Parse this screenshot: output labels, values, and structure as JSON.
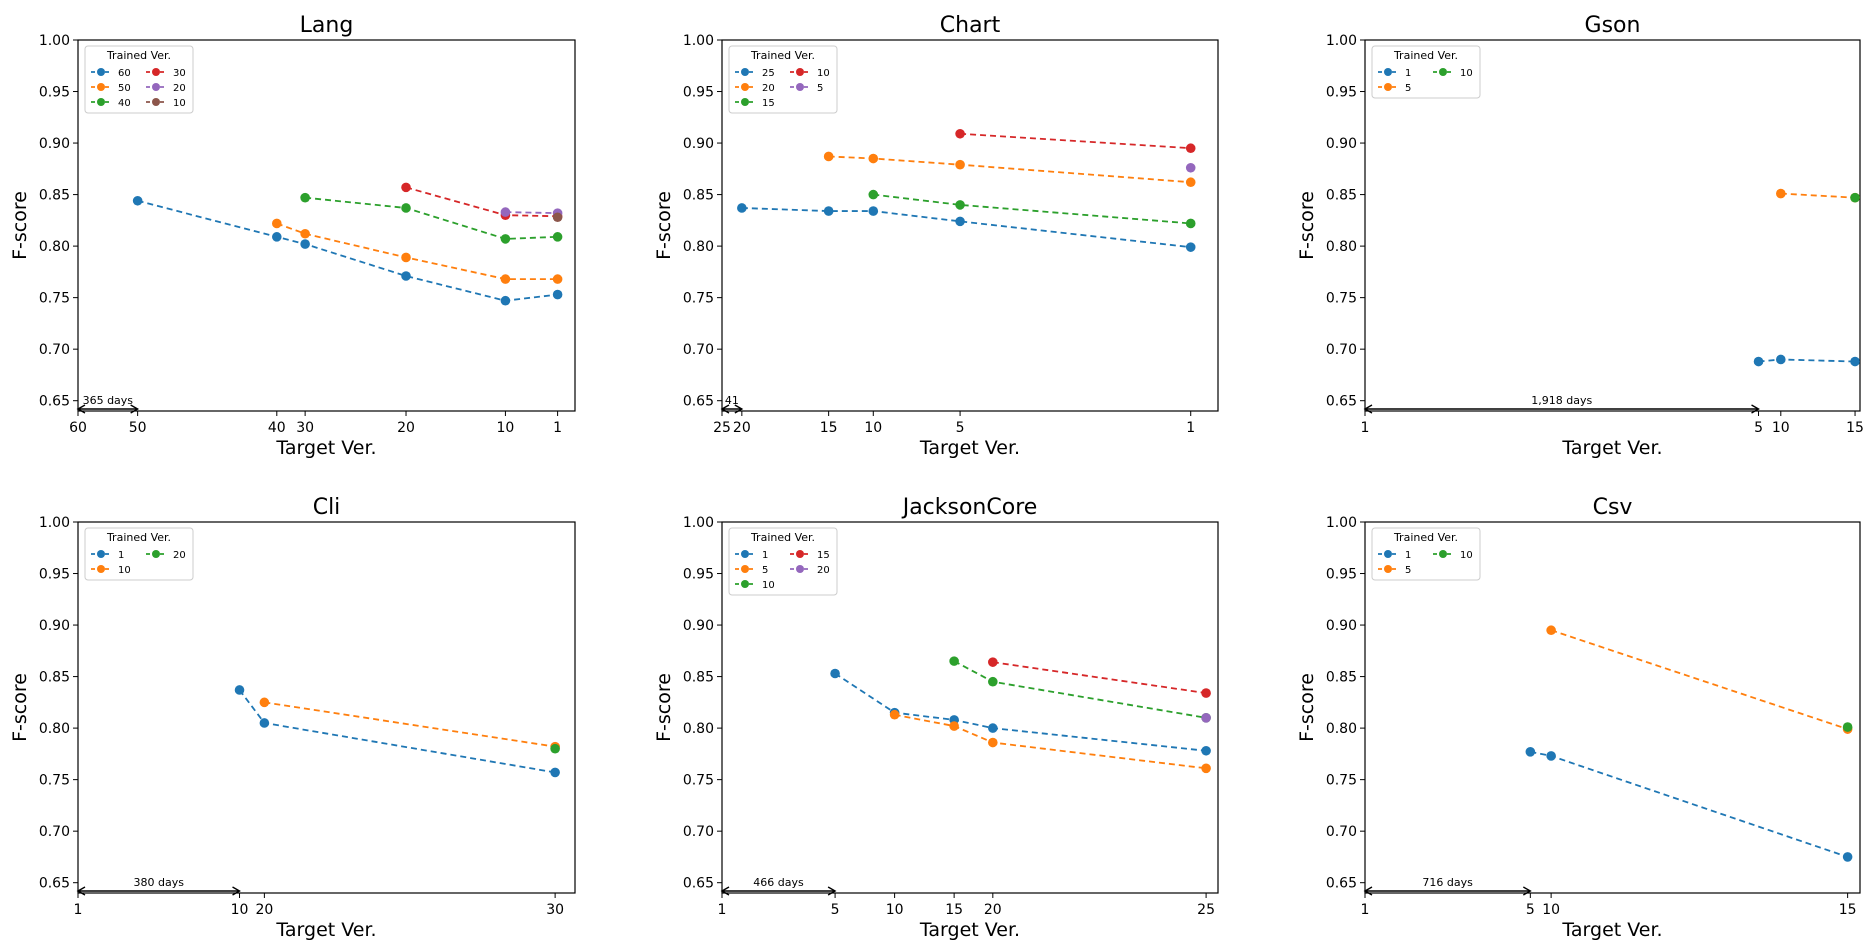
{
  "palette": {
    "series_colors": [
      "#1f77b4",
      "#ff7f0e",
      "#2ca02c",
      "#d62728",
      "#9467bd",
      "#8c564b"
    ],
    "background": "#ffffff",
    "axis_color": "#000000"
  },
  "chart_data": [
    {
      "type": "line",
      "title": "Lang",
      "xlabel": "Target Ver.",
      "ylabel": "F-score",
      "ylim": [
        0.64,
        1.0
      ],
      "yticks": [
        0.65,
        0.7,
        0.75,
        0.8,
        0.85,
        0.9,
        0.95,
        1.0
      ],
      "ytick_labels": [
        "0.65",
        "0.70",
        "0.75",
        "0.80",
        "0.85",
        "0.90",
        "0.95",
        "1.00"
      ],
      "x_ticks": [
        {
          "label": "60",
          "pos": 0.0
        },
        {
          "label": "50",
          "pos": 0.12
        },
        {
          "label": "40",
          "pos": 0.4
        },
        {
          "label": "30",
          "pos": 0.457
        },
        {
          "label": "20",
          "pos": 0.66
        },
        {
          "label": "10",
          "pos": 0.86
        },
        {
          "label": "1",
          "pos": 0.965
        }
      ],
      "range_annotation": {
        "label": "365 days",
        "from": 0.0,
        "to": 0.12
      },
      "legend": {
        "title": "Trained Ver.",
        "position": "upper-left",
        "ncol": 2
      },
      "series": [
        {
          "name": "60",
          "color": "#1f77b4",
          "x": [
            "50",
            "40",
            "30",
            "20",
            "10",
            "1"
          ],
          "values": [
            0.844,
            0.809,
            0.802,
            0.771,
            0.747,
            0.753
          ]
        },
        {
          "name": "50",
          "color": "#ff7f0e",
          "x": [
            "40",
            "30",
            "20",
            "10",
            "1"
          ],
          "values": [
            0.822,
            0.812,
            0.789,
            0.768,
            0.768
          ]
        },
        {
          "name": "40",
          "color": "#2ca02c",
          "x": [
            "30",
            "20",
            "10",
            "1"
          ],
          "values": [
            0.847,
            0.837,
            0.807,
            0.809
          ]
        },
        {
          "name": "30",
          "color": "#d62728",
          "x": [
            "20",
            "10",
            "1"
          ],
          "values": [
            0.857,
            0.83,
            0.829
          ]
        },
        {
          "name": "20",
          "color": "#9467bd",
          "x": [
            "10",
            "1"
          ],
          "values": [
            0.833,
            0.832
          ]
        },
        {
          "name": "10",
          "color": "#8c564b",
          "x": [
            "1"
          ],
          "values": [
            0.828
          ]
        }
      ]
    },
    {
      "type": "line",
      "title": "Chart",
      "xlabel": "Target Ver.",
      "ylabel": "F-score",
      "ylim": [
        0.64,
        1.0
      ],
      "yticks": [
        0.65,
        0.7,
        0.75,
        0.8,
        0.85,
        0.9,
        0.95,
        1.0
      ],
      "ytick_labels": [
        "0.65",
        "0.70",
        "0.75",
        "0.80",
        "0.85",
        "0.90",
        "0.95",
        "1.00"
      ],
      "x_ticks": [
        {
          "label": "25",
          "pos": 0.0
        },
        {
          "label": "20",
          "pos": 0.04
        },
        {
          "label": "15",
          "pos": 0.215
        },
        {
          "label": "10",
          "pos": 0.305
        },
        {
          "label": "5",
          "pos": 0.48
        },
        {
          "label": "1",
          "pos": 0.945
        }
      ],
      "range_annotation": {
        "label": "41",
        "from": 0.0,
        "to": 0.04
      },
      "legend": {
        "title": "Trained Ver.",
        "position": "upper-left",
        "ncol": 2
      },
      "series": [
        {
          "name": "25",
          "color": "#1f77b4",
          "x": [
            "20",
            "15",
            "10",
            "5",
            "1"
          ],
          "values": [
            0.837,
            0.834,
            0.834,
            0.824,
            0.799
          ]
        },
        {
          "name": "20",
          "color": "#ff7f0e",
          "x": [
            "15",
            "10",
            "5",
            "1"
          ],
          "values": [
            0.887,
            0.885,
            0.879,
            0.862
          ]
        },
        {
          "name": "15",
          "color": "#2ca02c",
          "x": [
            "10",
            "5",
            "1"
          ],
          "values": [
            0.85,
            0.84,
            0.822
          ]
        },
        {
          "name": "10",
          "color": "#d62728",
          "x": [
            "5",
            "1"
          ],
          "values": [
            0.909,
            0.895
          ]
        },
        {
          "name": "5",
          "color": "#9467bd",
          "x": [
            "1"
          ],
          "values": [
            0.876
          ]
        }
      ]
    },
    {
      "type": "line",
      "title": "Gson",
      "xlabel": "Target Ver.",
      "ylabel": "F-score",
      "ylim": [
        0.64,
        1.0
      ],
      "yticks": [
        0.65,
        0.7,
        0.75,
        0.8,
        0.85,
        0.9,
        0.95,
        1.0
      ],
      "ytick_labels": [
        "0.65",
        "0.70",
        "0.75",
        "0.80",
        "0.85",
        "0.90",
        "0.95",
        "1.00"
      ],
      "x_ticks": [
        {
          "label": "1",
          "pos": 0.0
        },
        {
          "label": "5",
          "pos": 0.795
        },
        {
          "label": "10",
          "pos": 0.84
        },
        {
          "label": "15",
          "pos": 0.99
        }
      ],
      "range_annotation": {
        "label": "1,918 days",
        "from": 0.0,
        "to": 0.795
      },
      "legend": {
        "title": "Trained Ver.",
        "position": "upper-left",
        "ncol": 2
      },
      "series": [
        {
          "name": "1",
          "color": "#1f77b4",
          "x": [
            "5",
            "10",
            "15"
          ],
          "values": [
            0.688,
            0.69,
            0.688
          ]
        },
        {
          "name": "5",
          "color": "#ff7f0e",
          "x": [
            "10",
            "15"
          ],
          "values": [
            0.851,
            0.847
          ]
        },
        {
          "name": "10",
          "color": "#2ca02c",
          "x": [
            "15"
          ],
          "values": [
            0.847
          ]
        }
      ]
    },
    {
      "type": "line",
      "title": "Cli",
      "xlabel": "Target Ver.",
      "ylabel": "F-score",
      "ylim": [
        0.64,
        1.0
      ],
      "yticks": [
        0.65,
        0.7,
        0.75,
        0.8,
        0.85,
        0.9,
        0.95,
        1.0
      ],
      "ytick_labels": [
        "0.65",
        "0.70",
        "0.75",
        "0.80",
        "0.85",
        "0.90",
        "0.95",
        "1.00"
      ],
      "x_ticks": [
        {
          "label": "1",
          "pos": 0.0
        },
        {
          "label": "10",
          "pos": 0.325
        },
        {
          "label": "20",
          "pos": 0.375
        },
        {
          "label": "30",
          "pos": 0.96
        }
      ],
      "range_annotation": {
        "label": "380 days",
        "from": 0.0,
        "to": 0.325
      },
      "legend": {
        "title": "Trained Ver.",
        "position": "upper-left",
        "ncol": 2
      },
      "series": [
        {
          "name": "1",
          "color": "#1f77b4",
          "x": [
            "10",
            "20",
            "30"
          ],
          "values": [
            0.837,
            0.805,
            0.757
          ]
        },
        {
          "name": "10",
          "color": "#ff7f0e",
          "x": [
            "20",
            "30"
          ],
          "values": [
            0.825,
            0.782
          ]
        },
        {
          "name": "20",
          "color": "#2ca02c",
          "x": [
            "30"
          ],
          "values": [
            0.78
          ]
        }
      ]
    },
    {
      "type": "line",
      "title": "JacksonCore",
      "xlabel": "Target Ver.",
      "ylabel": "F-score",
      "ylim": [
        0.64,
        1.0
      ],
      "yticks": [
        0.65,
        0.7,
        0.75,
        0.8,
        0.85,
        0.9,
        0.95,
        1.0
      ],
      "ytick_labels": [
        "0.65",
        "0.70",
        "0.75",
        "0.80",
        "0.85",
        "0.90",
        "0.95",
        "1.00"
      ],
      "x_ticks": [
        {
          "label": "1",
          "pos": 0.0
        },
        {
          "label": "5",
          "pos": 0.228
        },
        {
          "label": "10",
          "pos": 0.348
        },
        {
          "label": "15",
          "pos": 0.468
        },
        {
          "label": "20",
          "pos": 0.546
        },
        {
          "label": "25",
          "pos": 0.976
        }
      ],
      "range_annotation": {
        "label": "466 days",
        "from": 0.0,
        "to": 0.228
      },
      "legend": {
        "title": "Trained Ver.",
        "position": "upper-left",
        "ncol": 2
      },
      "series": [
        {
          "name": "1",
          "color": "#1f77b4",
          "x": [
            "5",
            "10",
            "15",
            "20",
            "25"
          ],
          "values": [
            0.853,
            0.815,
            0.808,
            0.8,
            0.778
          ]
        },
        {
          "name": "5",
          "color": "#ff7f0e",
          "x": [
            "10",
            "15",
            "20",
            "25"
          ],
          "values": [
            0.813,
            0.802,
            0.786,
            0.761
          ]
        },
        {
          "name": "10",
          "color": "#2ca02c",
          "x": [
            "15",
            "20",
            "25"
          ],
          "values": [
            0.865,
            0.845,
            0.81
          ]
        },
        {
          "name": "15",
          "color": "#d62728",
          "x": [
            "20",
            "25"
          ],
          "values": [
            0.864,
            0.834
          ]
        },
        {
          "name": "20",
          "color": "#9467bd",
          "x": [
            "25"
          ],
          "values": [
            0.81
          ]
        }
      ]
    },
    {
      "type": "line",
      "title": "Csv",
      "xlabel": "Target Ver.",
      "ylabel": "F-score",
      "ylim": [
        0.64,
        1.0
      ],
      "yticks": [
        0.65,
        0.7,
        0.75,
        0.8,
        0.85,
        0.9,
        0.95,
        1.0
      ],
      "ytick_labels": [
        "0.65",
        "0.70",
        "0.75",
        "0.80",
        "0.85",
        "0.90",
        "0.95",
        "1.00"
      ],
      "x_ticks": [
        {
          "label": "1",
          "pos": 0.0
        },
        {
          "label": "5",
          "pos": 0.334
        },
        {
          "label": "10",
          "pos": 0.376
        },
        {
          "label": "15",
          "pos": 0.975
        }
      ],
      "range_annotation": {
        "label": "716 days",
        "from": 0.0,
        "to": 0.334
      },
      "legend": {
        "title": "Trained Ver.",
        "position": "upper-left",
        "ncol": 2
      },
      "series": [
        {
          "name": "1",
          "color": "#1f77b4",
          "x": [
            "5",
            "10",
            "15"
          ],
          "values": [
            0.777,
            0.773,
            0.675
          ]
        },
        {
          "name": "5",
          "color": "#ff7f0e",
          "x": [
            "10",
            "15"
          ],
          "values": [
            0.895,
            0.799
          ]
        },
        {
          "name": "10",
          "color": "#2ca02c",
          "x": [
            "15"
          ],
          "values": [
            0.801
          ]
        }
      ]
    }
  ]
}
